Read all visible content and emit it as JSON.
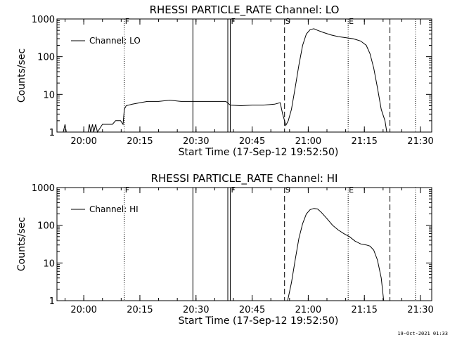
{
  "footer_stamp": "19-Oct-2021 01:33",
  "chart_data": [
    {
      "type": "line",
      "title": "RHESSI PARTICLE_RATE Channel: LO",
      "xlabel": "Start Time (17-Sep-12 19:52:50)",
      "ylabel": "Counts/sec",
      "y_scale": "log",
      "ylim": [
        1,
        1000
      ],
      "xlim": [
        "19:52:50",
        "21:33:00"
      ],
      "x_ticks": [
        "20:00",
        "20:15",
        "20:30",
        "20:45",
        "21:00",
        "21:15",
        "21:30"
      ],
      "y_ticks": [
        "1",
        "10",
        "100",
        "1000"
      ],
      "legend": {
        "entries": [
          "Channel: LO"
        ],
        "placement": "top-left"
      },
      "markers": [
        {
          "time": "20:10:50",
          "style": "dotted",
          "label": "F"
        },
        {
          "time": "20:29:10",
          "style": "solid",
          "label": ""
        },
        {
          "time": "20:38:30",
          "style": "solid",
          "label": ""
        },
        {
          "time": "20:39:10",
          "style": "solid",
          "label": "F"
        },
        {
          "time": "20:53:40",
          "style": "dashed",
          "label": "S"
        },
        {
          "time": "21:10:40",
          "style": "dotted",
          "label": "E"
        },
        {
          "time": "21:21:50",
          "style": "dashed",
          "label": ""
        },
        {
          "time": "21:28:40",
          "style": "dotted",
          "label": ""
        }
      ],
      "series": [
        {
          "name": "Channel: LO",
          "points": [
            [
              "19:54:30",
              1
            ],
            [
              "19:55:00",
              1.6
            ],
            [
              "19:55:20",
              1
            ],
            [
              "19:58:00",
              1
            ],
            [
              "20:01:10",
              1
            ],
            [
              "20:01:30",
              1.6
            ],
            [
              "20:01:50",
              1
            ],
            [
              "20:02:20",
              1.6
            ],
            [
              "20:02:40",
              1
            ],
            [
              "20:03:10",
              1.6
            ],
            [
              "20:03:40",
              1
            ],
            [
              "20:05:00",
              1.6
            ],
            [
              "20:07:40",
              1.6
            ],
            [
              "20:08:30",
              2
            ],
            [
              "20:09:50",
              2
            ],
            [
              "20:10:30",
              1.6
            ],
            [
              "20:10:50",
              4
            ],
            [
              "20:11:20",
              5
            ],
            [
              "20:13:00",
              5.5
            ],
            [
              "20:15:00",
              6
            ],
            [
              "20:17:00",
              6.5
            ],
            [
              "20:20:00",
              6.5
            ],
            [
              "20:23:00",
              7
            ],
            [
              "20:26:00",
              6.5
            ],
            [
              "20:29:00",
              6.5
            ],
            [
              "20:32:00",
              6.5
            ],
            [
              "20:35:00",
              6.5
            ],
            [
              "20:38:00",
              6.5
            ],
            [
              "20:39:10",
              5.2
            ],
            [
              "20:42:00",
              5
            ],
            [
              "20:45:00",
              5.2
            ],
            [
              "20:48:00",
              5.2
            ],
            [
              "20:51:00",
              5.5
            ],
            [
              "20:52:30",
              6
            ],
            [
              "20:53:10",
              3
            ],
            [
              "20:53:40",
              2
            ],
            [
              "20:54:00",
              1.5
            ],
            [
              "20:54:40",
              2
            ],
            [
              "20:55:30",
              4
            ],
            [
              "20:56:30",
              15
            ],
            [
              "20:57:30",
              60
            ],
            [
              "20:58:30",
              200
            ],
            [
              "20:59:30",
              400
            ],
            [
              "21:00:30",
              520
            ],
            [
              "21:01:30",
              550
            ],
            [
              "21:02:30",
              500
            ],
            [
              "21:04:00",
              440
            ],
            [
              "21:06:00",
              380
            ],
            [
              "21:08:00",
              340
            ],
            [
              "21:10:00",
              320
            ],
            [
              "21:12:00",
              300
            ],
            [
              "21:14:00",
              260
            ],
            [
              "21:15:30",
              200
            ],
            [
              "21:16:30",
              120
            ],
            [
              "21:17:30",
              50
            ],
            [
              "21:18:30",
              15
            ],
            [
              "21:19:30",
              4
            ],
            [
              "21:20:30",
              2
            ],
            [
              "21:21:00",
              1
            ]
          ]
        }
      ]
    },
    {
      "type": "line",
      "title": "RHESSI PARTICLE_RATE Channel: HI",
      "xlabel": "Start Time (17-Sep-12 19:52:50)",
      "ylabel": "Counts/sec",
      "y_scale": "log",
      "ylim": [
        1,
        1000
      ],
      "xlim": [
        "19:52:50",
        "21:33:00"
      ],
      "x_ticks": [
        "20:00",
        "20:15",
        "20:30",
        "20:45",
        "21:00",
        "21:15",
        "21:30"
      ],
      "y_ticks": [
        "1",
        "10",
        "100",
        "1000"
      ],
      "legend": {
        "entries": [
          "Channel: HI"
        ],
        "placement": "top-left"
      },
      "markers": [
        {
          "time": "20:10:50",
          "style": "dotted",
          "label": "F"
        },
        {
          "time": "20:29:10",
          "style": "solid",
          "label": ""
        },
        {
          "time": "20:38:30",
          "style": "solid",
          "label": ""
        },
        {
          "time": "20:39:10",
          "style": "solid",
          "label": "F"
        },
        {
          "time": "20:53:40",
          "style": "dashed",
          "label": "S"
        },
        {
          "time": "21:10:40",
          "style": "dotted",
          "label": "E"
        },
        {
          "time": "21:21:50",
          "style": "dashed",
          "label": ""
        },
        {
          "time": "21:28:40",
          "style": "dotted",
          "label": ""
        }
      ],
      "series": [
        {
          "name": "Channel: HI",
          "points": [
            [
              "20:54:30",
              1
            ],
            [
              "20:55:30",
              3
            ],
            [
              "20:56:30",
              12
            ],
            [
              "20:57:30",
              45
            ],
            [
              "20:58:30",
              110
            ],
            [
              "20:59:30",
              200
            ],
            [
              "21:00:30",
              260
            ],
            [
              "21:01:30",
              280
            ],
            [
              "21:02:30",
              270
            ],
            [
              "21:03:30",
              220
            ],
            [
              "21:05:00",
              150
            ],
            [
              "21:06:30",
              100
            ],
            [
              "21:08:00",
              75
            ],
            [
              "21:09:30",
              60
            ],
            [
              "21:11:00",
              50
            ],
            [
              "21:12:30",
              38
            ],
            [
              "21:14:00",
              32
            ],
            [
              "21:15:30",
              30
            ],
            [
              "21:16:30",
              28
            ],
            [
              "21:17:30",
              22
            ],
            [
              "21:18:30",
              12
            ],
            [
              "21:19:30",
              4
            ],
            [
              "21:20:10",
              1
            ]
          ]
        }
      ]
    }
  ]
}
